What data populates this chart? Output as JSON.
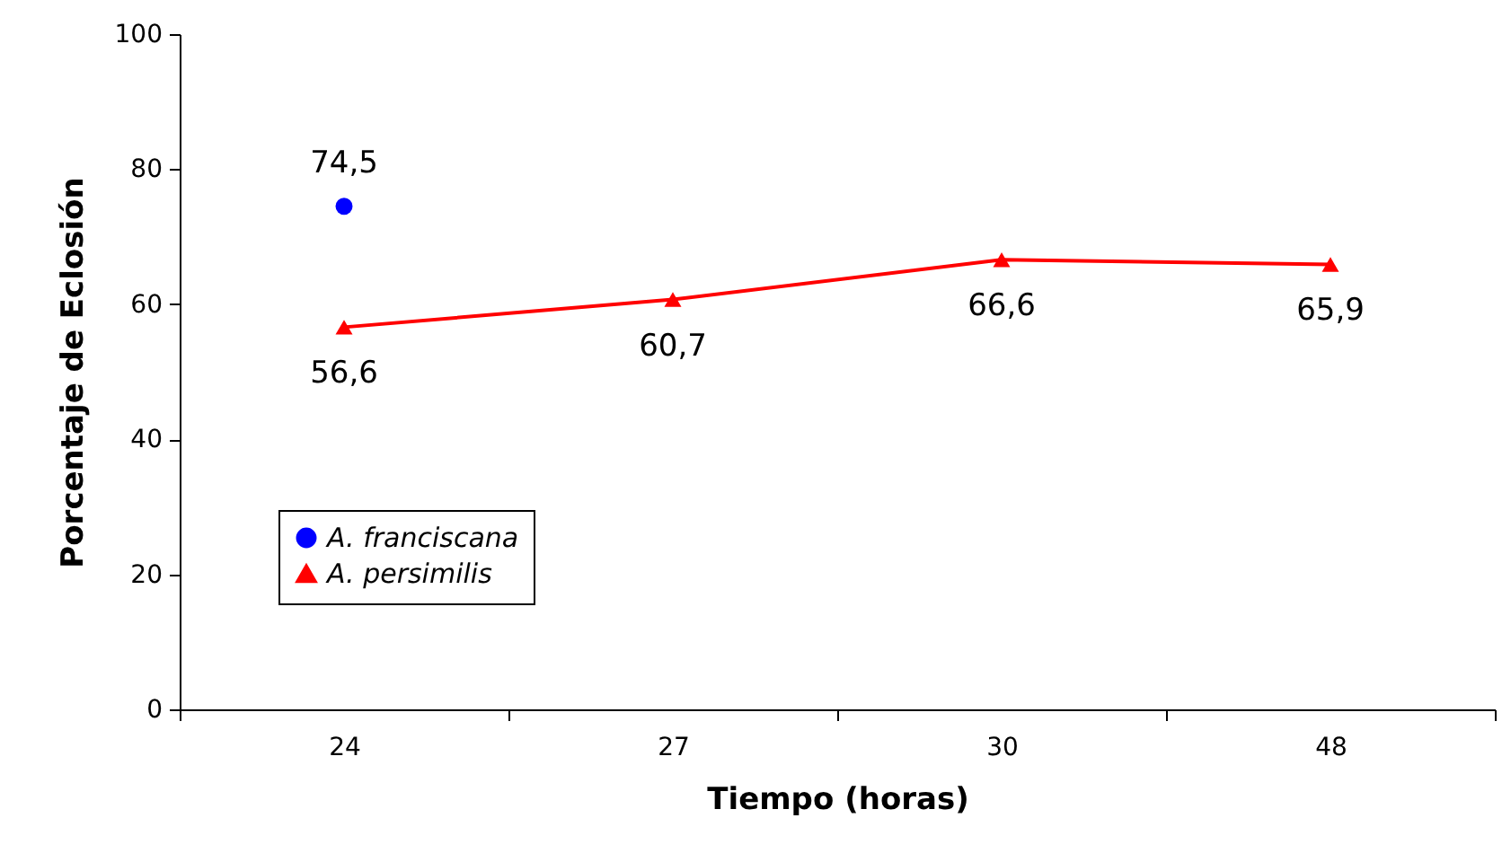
{
  "chart_data": {
    "type": "line",
    "xlabel": "Tiempo (horas)",
    "ylabel": "Porcentaje de Eclosión",
    "categories": [
      "24",
      "27",
      "30",
      "48"
    ],
    "series": [
      {
        "name": "A. franciscana",
        "color": "#0000ff",
        "marker": "circle",
        "values": [
          74.5,
          null,
          null,
          null
        ],
        "value_labels": [
          "74,5",
          null,
          null,
          null
        ]
      },
      {
        "name": "A. persimilis",
        "color": "#ff0000",
        "marker": "triangle",
        "values": [
          56.6,
          60.7,
          66.6,
          65.9
        ],
        "value_labels": [
          "56,6",
          "60,7",
          "66,6",
          "65,9"
        ]
      }
    ],
    "ylim": [
      0,
      100
    ],
    "yticks": [
      0,
      20,
      40,
      60,
      80,
      100
    ],
    "grid": false,
    "legend": "bottom left"
  }
}
